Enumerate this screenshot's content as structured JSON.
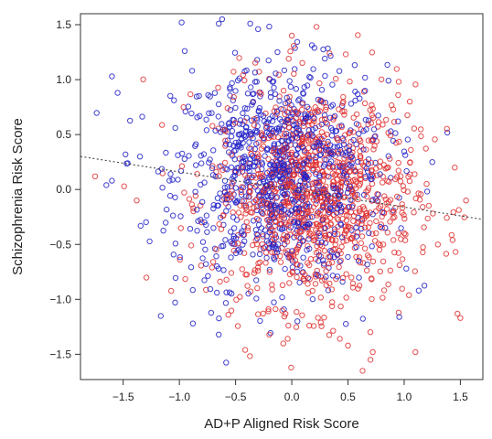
{
  "chart_data": {
    "type": "scatter",
    "title": "",
    "xlabel": "AD+P Aligned Risk Score",
    "ylabel": "Schizophrenia Risk Score",
    "xlim": [
      -1.88,
      1.7
    ],
    "ylim": [
      -1.73,
      1.6
    ],
    "x_ticks": [
      -1.5,
      -1.0,
      -0.5,
      0.0,
      0.5,
      1.0,
      1.5
    ],
    "x_tick_labels": [
      "−1.5",
      "−1.0",
      "−0.5",
      "0.0",
      "0.5",
      "1.0",
      "1.5"
    ],
    "y_ticks": [
      -1.5,
      -1.0,
      -0.5,
      0.0,
      0.5,
      1.0,
      1.5
    ],
    "y_tick_labels": [
      "−1.5",
      "−1.0",
      "−0.5",
      "0.0",
      "0.5",
      "1.0",
      "1.5"
    ],
    "grid": false,
    "legend": "none",
    "series": [
      {
        "color": "#2222c8",
        "marker": "open-circle",
        "cloud": {
          "n": 950,
          "mean_x": -0.1,
          "mean_y": 0.12,
          "sd_x": 0.47,
          "sd_y": 0.5
        },
        "points": [
          {
            "x": -0.98,
            "y": 1.52
          },
          {
            "x": -0.62,
            "y": 1.55
          },
          {
            "x": -0.65,
            "y": 1.51
          },
          {
            "x": -0.37,
            "y": 1.51
          },
          {
            "x": -0.3,
            "y": 1.46
          },
          {
            "x": -1.6,
            "y": 1.03
          },
          {
            "x": -1.55,
            "y": 0.88
          },
          {
            "x": -1.65,
            "y": 0.04
          },
          {
            "x": -1.6,
            "y": 0.08
          },
          {
            "x": -1.35,
            "y": 0.3
          },
          {
            "x": -0.88,
            "y": -1.22
          },
          {
            "x": -0.65,
            "y": -1.32
          },
          {
            "x": 0.05,
            "y": -1.2
          },
          {
            "x": -1.48,
            "y": 0.32
          },
          {
            "x": 1.13,
            "y": -0.92
          },
          {
            "x": 1.25,
            "y": 0.25
          }
        ]
      },
      {
        "color": "#e03030",
        "marker": "open-circle",
        "cloud": {
          "n": 1050,
          "mean_x": 0.2,
          "mean_y": -0.05,
          "sd_x": 0.45,
          "sd_y": 0.5
        },
        "points": [
          {
            "x": 0.22,
            "y": 1.48
          },
          {
            "x": 0.0,
            "y": 1.4
          },
          {
            "x": 0.48,
            "y": 1.23
          },
          {
            "x": 0.5,
            "y": -1.42
          },
          {
            "x": 0.7,
            "y": -1.55
          },
          {
            "x": 0.63,
            "y": -1.65
          },
          {
            "x": 0.72,
            "y": -1.48
          },
          {
            "x": 1.1,
            "y": -1.48
          },
          {
            "x": 1.5,
            "y": -1.17
          },
          {
            "x": -1.75,
            "y": 0.12
          },
          {
            "x": 1.55,
            "y": -0.1
          },
          {
            "x": 1.3,
            "y": -0.5
          },
          {
            "x": 1.45,
            "y": 0.2
          },
          {
            "x": -1.38,
            "y": -0.1
          },
          {
            "x": -0.2,
            "y": -1.32
          },
          {
            "x": 1.05,
            "y": 0.8
          }
        ]
      }
    ],
    "trend_line": {
      "style": "dotted",
      "color": "#444444",
      "slope": -0.16,
      "intercept": 0.0
    }
  }
}
